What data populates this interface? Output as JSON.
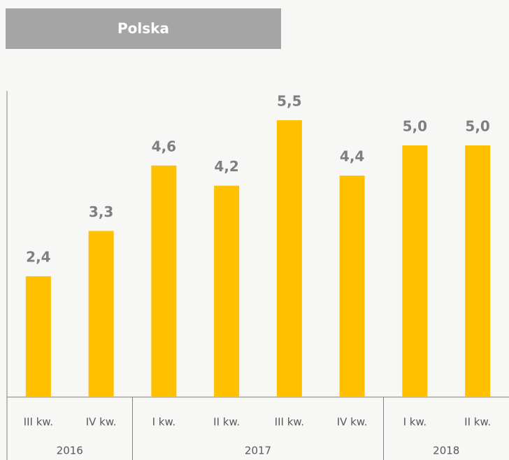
{
  "chart_data": {
    "type": "bar",
    "title": "Polska",
    "color": "#ffc000",
    "groups": [
      {
        "label": "2016",
        "categories": [
          "III kw.",
          "IV kw."
        ]
      },
      {
        "label": "2017",
        "categories": [
          "I kw.",
          "II kw.",
          "III kw.",
          "IV kw."
        ]
      },
      {
        "label": "2018",
        "categories": [
          "I kw.",
          "II kw."
        ]
      }
    ],
    "values": [
      2.4,
      3.3,
      4.6,
      4.2,
      5.5,
      4.4,
      5.0,
      5.0
    ],
    "value_labels": [
      "2,4",
      "3,3",
      "4,6",
      "4,2",
      "5,5",
      "4,4",
      "5,0",
      "5,0"
    ]
  }
}
